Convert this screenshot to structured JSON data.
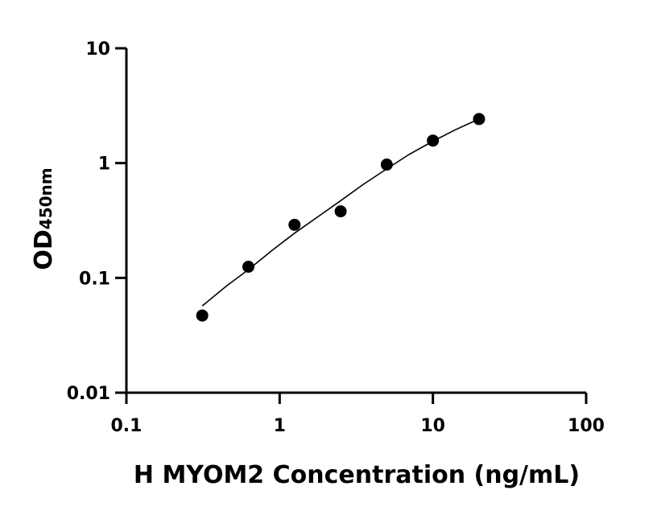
{
  "chart_data": {
    "type": "scatter",
    "xlabel": "H MYOM2 Concentration (ng/mL)",
    "ylabel_main": "OD",
    "ylabel_sub": "450nm",
    "xscale": "log",
    "yscale": "log",
    "xlim": [
      0.1,
      100
    ],
    "ylim": [
      0.01,
      10
    ],
    "x_ticks": [
      0.1,
      1,
      10,
      100
    ],
    "x_tick_labels": [
      "0.1",
      "1",
      "10",
      "100"
    ],
    "y_ticks": [
      0.01,
      0.1,
      1,
      10
    ],
    "y_tick_labels": [
      "0.01",
      "0.1",
      "1",
      "10"
    ],
    "grid": false,
    "points": [
      {
        "x": 0.3125,
        "y": 0.047
      },
      {
        "x": 0.625,
        "y": 0.125
      },
      {
        "x": 1.25,
        "y": 0.29
      },
      {
        "x": 2.5,
        "y": 0.38
      },
      {
        "x": 5,
        "y": 0.97
      },
      {
        "x": 10,
        "y": 1.57
      },
      {
        "x": 20,
        "y": 2.42
      }
    ],
    "fit_curve": {
      "x": [
        0.3125,
        0.45,
        0.625,
        0.9,
        1.25,
        1.8,
        2.5,
        3.5,
        5,
        7,
        10,
        14,
        20
      ],
      "y": [
        0.057,
        0.085,
        0.118,
        0.175,
        0.245,
        0.345,
        0.47,
        0.65,
        0.89,
        1.19,
        1.55,
        1.95,
        2.42
      ]
    }
  }
}
